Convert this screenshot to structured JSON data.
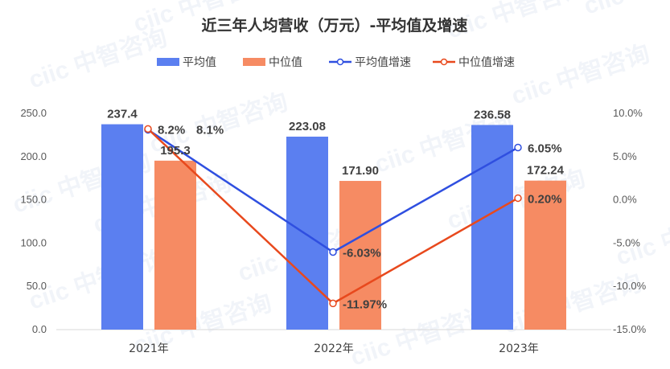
{
  "chart_data": {
    "type": "bar",
    "title": "近三年人均营收（万元）-平均值及增速",
    "categories": [
      "2021年",
      "2022年",
      "2023年"
    ],
    "series": [
      {
        "name": "平均值",
        "kind": "bar",
        "axis": "left",
        "color": "#5b7ff0",
        "values": [
          237.4,
          223.08,
          236.58
        ],
        "labels": [
          "237.4",
          "223.08",
          "236.58"
        ]
      },
      {
        "name": "中位值",
        "kind": "bar",
        "axis": "left",
        "color": "#f68b63",
        "values": [
          195.3,
          171.9,
          172.24
        ],
        "labels": [
          "195.3",
          "171.90",
          "172.24"
        ]
      },
      {
        "name": "平均值增速",
        "kind": "line",
        "axis": "right",
        "color": "#2f4fe0",
        "values": [
          8.1,
          -6.03,
          6.05
        ],
        "labels": [
          "8.1%",
          "-6.03%",
          "6.05%"
        ]
      },
      {
        "name": "中位值增速",
        "kind": "line",
        "axis": "right",
        "color": "#e8491d",
        "values": [
          8.2,
          -11.97,
          0.2
        ],
        "labels": [
          "8.2%",
          "-11.97%",
          "0.20%"
        ]
      }
    ],
    "y_left": {
      "min": 0,
      "max": 250,
      "step": 50,
      "tick_labels": [
        "0.0",
        "50.0",
        "100.0",
        "150.0",
        "200.0",
        "250.0"
      ]
    },
    "y_right": {
      "min": -15,
      "max": 10,
      "step": 5,
      "tick_labels": [
        "-15.0%",
        "-10.0%",
        "-5.0%",
        "0.0%",
        "5.0%",
        "10.0%"
      ]
    },
    "legend_position": "top",
    "grid": false
  },
  "watermark": {
    "text": "ciic 中智咨询"
  }
}
